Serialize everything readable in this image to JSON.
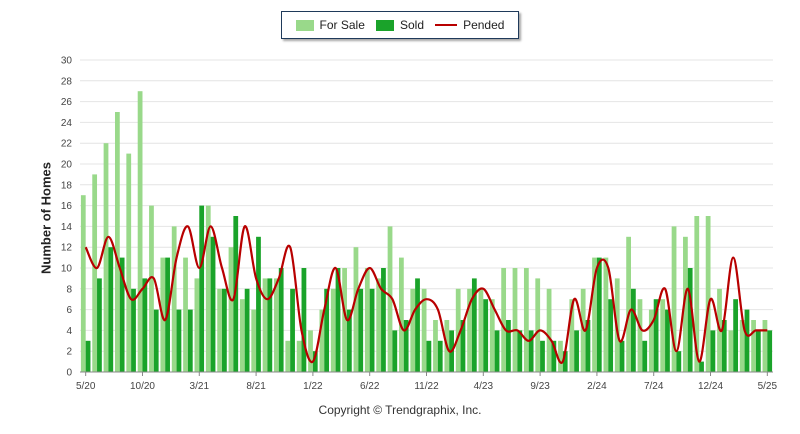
{
  "chart_data": {
    "type": "bar",
    "title": "",
    "ylabel": "Number of Homes",
    "ylim": [
      0,
      30
    ],
    "yticks": [
      0,
      2,
      4,
      6,
      8,
      10,
      12,
      14,
      16,
      18,
      20,
      22,
      24,
      26,
      28,
      30
    ],
    "grid": true,
    "legend_position": "top-center",
    "x_tick_labels": [
      "5/20",
      "10/20",
      "3/21",
      "8/21",
      "1/22",
      "6/22",
      "11/22",
      "4/23",
      "9/23",
      "2/24",
      "7/24",
      "12/24",
      "5/25"
    ],
    "x_tick_month_index": [
      0,
      5,
      10,
      15,
      20,
      25,
      30,
      35,
      40,
      45,
      50,
      55,
      60
    ],
    "series": [
      {
        "name": "For Sale",
        "type": "bar",
        "color": "#99d98a",
        "values": [
          17,
          19,
          22,
          25,
          21,
          27,
          16,
          11,
          14,
          11,
          9,
          16,
          8,
          12,
          7,
          6,
          9,
          9,
          3,
          3,
          4,
          6,
          8,
          10,
          12,
          10,
          9,
          14,
          11,
          8,
          8,
          5,
          5,
          8,
          8,
          8,
          7,
          10,
          10,
          10,
          9,
          8,
          3,
          7,
          8,
          11,
          11,
          9,
          13,
          7,
          6,
          7,
          14,
          13,
          15,
          15,
          8,
          4,
          5,
          5,
          5
        ]
      },
      {
        "name": "Sold",
        "type": "bar",
        "color": "#1aa32a",
        "values": [
          3,
          9,
          12,
          11,
          8,
          9,
          6,
          11,
          6,
          6,
          16,
          13,
          8,
          15,
          8,
          13,
          9,
          10,
          8,
          10,
          2,
          8,
          10,
          6,
          8,
          8,
          10,
          4,
          5,
          9,
          3,
          3,
          4,
          5,
          9,
          7,
          4,
          5,
          4,
          4,
          3,
          3,
          2,
          4,
          5,
          11,
          7,
          3,
          8,
          3,
          7,
          6,
          2,
          10,
          1,
          4,
          5,
          7,
          6,
          4,
          4
        ]
      },
      {
        "name": "Pended",
        "type": "line",
        "color": "#b80000",
        "values": [
          12,
          10,
          13,
          10,
          7,
          8,
          9,
          5,
          11,
          14,
          10,
          14,
          10,
          7,
          14,
          9,
          7,
          9,
          12,
          4,
          1,
          6,
          10,
          5,
          8,
          10,
          8,
          7,
          4,
          6,
          7,
          6,
          2,
          4,
          7,
          8,
          6,
          4,
          4,
          3,
          4,
          3,
          1,
          7,
          4,
          10,
          10,
          3,
          6,
          4,
          5,
          8,
          2,
          8,
          1,
          7,
          4,
          11,
          4,
          4,
          4
        ]
      }
    ]
  },
  "legend": {
    "for_sale": "For Sale",
    "sold": "Sold",
    "pended": "Pended"
  },
  "copyright": "Copyright © Trendgraphix, Inc."
}
